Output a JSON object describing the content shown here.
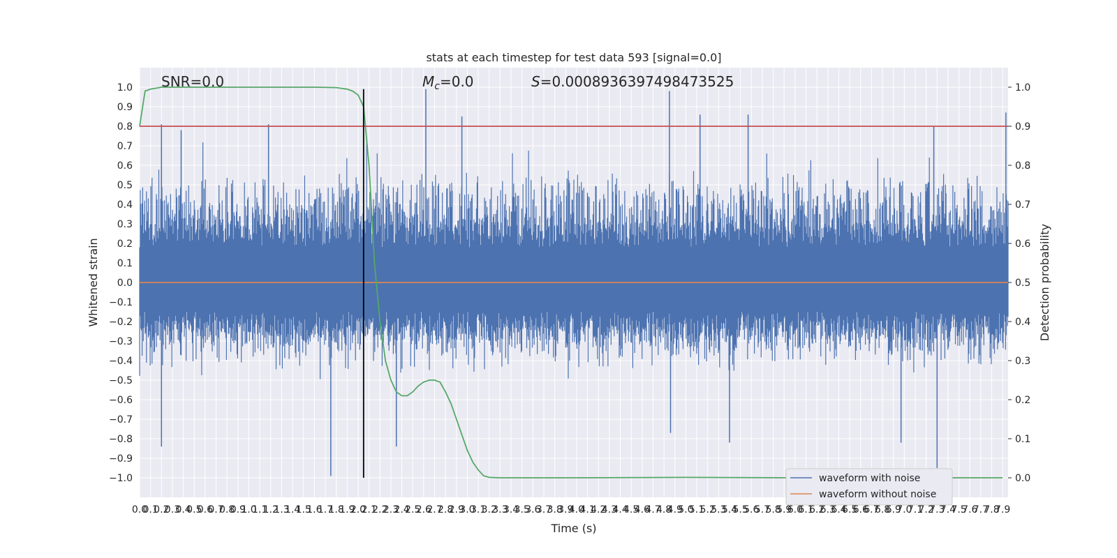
{
  "chart_data": {
    "type": "line",
    "title": "stats at each timestep for test data 593 [signal=0.0]",
    "xlabel": "Time (s)",
    "ylabel": "Whitened strain",
    "y2label": "Detection probability",
    "xlim": [
      0.0,
      7.95
    ],
    "ylim": [
      -1.1,
      1.1
    ],
    "y2lim": [
      -0.05,
      1.05
    ],
    "x_ticks": [
      "0.0",
      "0.1",
      "0.2",
      "0.3",
      "0.4",
      "0.5",
      "0.6",
      "0.7",
      "0.8",
      "0.9",
      "1.0",
      "1.1",
      "1.2",
      "1.3",
      "1.4",
      "1.5",
      "1.6",
      "1.7",
      "1.8",
      "1.9",
      "2.0",
      "2.1",
      "2.2",
      "2.3",
      "2.4",
      "2.5",
      "2.6",
      "2.7",
      "2.8",
      "2.9",
      "3.0",
      "3.1",
      "3.2",
      "3.3",
      "3.4",
      "3.5",
      "3.6",
      "3.7",
      "3.8",
      "3.9",
      "4.0",
      "4.1",
      "4.2",
      "4.3",
      "4.4",
      "4.5",
      "4.6",
      "4.7",
      "4.8",
      "4.9",
      "5.0",
      "5.1",
      "5.2",
      "5.3",
      "5.4",
      "5.5",
      "5.6",
      "5.7",
      "5.8",
      "5.9",
      "6.0",
      "6.1",
      "6.2",
      "6.3",
      "6.4",
      "6.5",
      "6.6",
      "6.7",
      "6.8",
      "6.9",
      "7.0",
      "7.1",
      "7.2",
      "7.3",
      "7.4",
      "7.5",
      "7.6",
      "7.7",
      "7.8",
      "7.9"
    ],
    "y_ticks": [
      "1.0",
      "0.9",
      "0.8",
      "0.7",
      "0.6",
      "0.5",
      "0.4",
      "0.3",
      "0.2",
      "0.1",
      "0.0",
      "−0.1",
      "−0.2",
      "−0.3",
      "−0.4",
      "−0.5",
      "−0.6",
      "−0.7",
      "−0.8",
      "−0.9",
      "−1.0"
    ],
    "y_tick_values": [
      1.0,
      0.9,
      0.8,
      0.7,
      0.6,
      0.5,
      0.4,
      0.3,
      0.2,
      0.1,
      0.0,
      -0.1,
      -0.2,
      -0.3,
      -0.4,
      -0.5,
      -0.6,
      -0.7,
      -0.8,
      -0.9,
      -1.0
    ],
    "y2_ticks": [
      "1.0",
      "0.9",
      "0.8",
      "0.7",
      "0.6",
      "0.5",
      "0.4",
      "0.3",
      "0.2",
      "0.1",
      "0.0"
    ],
    "y2_tick_values": [
      1.0,
      0.9,
      0.8,
      0.7,
      0.6,
      0.5,
      0.4,
      0.3,
      0.2,
      0.1,
      0.0
    ],
    "annotations": {
      "snr": "SNR=0.0",
      "mc_symbol": "M",
      "mc_sub": "c",
      "mc_value": "=0.0",
      "s_symbol": "S",
      "s_value": "=0.0008936397498473525"
    },
    "legend": {
      "placement": "lower-right",
      "entries": [
        "waveform with noise",
        "waveform without noise"
      ]
    },
    "series": [
      {
        "name": "waveform with noise",
        "axis": "left",
        "color": "#4c72b0",
        "style": "dense noise",
        "description_values": {
          "typical_positive_peak": 0.55,
          "typical_negative_trough": -0.45,
          "max": 0.99,
          "min": -0.99
        },
        "notable_peaks": [
          {
            "x": 0.2,
            "y": 0.81
          },
          {
            "x": 0.38,
            "y": 0.78
          },
          {
            "x": 1.18,
            "y": 0.81
          },
          {
            "x": 2.62,
            "y": 0.99
          },
          {
            "x": 2.95,
            "y": 0.85
          },
          {
            "x": 4.85,
            "y": 0.98
          },
          {
            "x": 5.13,
            "y": 0.86
          },
          {
            "x": 5.57,
            "y": 0.86
          },
          {
            "x": 7.27,
            "y": 0.8
          },
          {
            "x": 7.93,
            "y": 0.87
          },
          {
            "x": 0.2,
            "y": -0.84
          },
          {
            "x": 1.75,
            "y": -0.99
          },
          {
            "x": 2.35,
            "y": -0.84
          },
          {
            "x": 4.86,
            "y": -0.77
          },
          {
            "x": 5.4,
            "y": -0.82
          },
          {
            "x": 6.97,
            "y": -0.82
          },
          {
            "x": 7.3,
            "y": -0.95
          }
        ]
      },
      {
        "name": "waveform without noise",
        "axis": "left",
        "color": "#dd8452",
        "x": [
          0.0,
          7.95
        ],
        "y": [
          0.0,
          0.0
        ]
      },
      {
        "name": "detection probability",
        "axis": "right",
        "color": "#55a868",
        "x": [
          0.0,
          0.05,
          0.1,
          0.2,
          0.4,
          0.8,
          1.2,
          1.6,
          1.8,
          1.9,
          1.95,
          2.0,
          2.05,
          2.1,
          2.15,
          2.2,
          2.25,
          2.3,
          2.35,
          2.4,
          2.45,
          2.5,
          2.55,
          2.6,
          2.65,
          2.7,
          2.75,
          2.8,
          2.85,
          2.9,
          2.95,
          3.0,
          3.05,
          3.1,
          3.15,
          3.2,
          3.3,
          4.0,
          5.0,
          6.0,
          7.0,
          7.9
        ],
        "y": [
          0.9,
          0.99,
          0.995,
          1.0,
          1.0,
          1.0,
          1.0,
          1.0,
          0.999,
          0.995,
          0.99,
          0.98,
          0.95,
          0.8,
          0.55,
          0.4,
          0.3,
          0.25,
          0.22,
          0.21,
          0.21,
          0.22,
          0.235,
          0.245,
          0.25,
          0.25,
          0.245,
          0.22,
          0.19,
          0.15,
          0.11,
          0.07,
          0.04,
          0.02,
          0.005,
          0.001,
          0.0,
          0.0,
          0.001,
          0.0,
          0.0,
          0.0
        ]
      },
      {
        "name": "threshold",
        "axis": "right",
        "color": "#c44e52",
        "x": [
          0.0,
          7.95
        ],
        "y": [
          0.9,
          0.9
        ]
      },
      {
        "name": "marker",
        "axis": "left",
        "color": "#000000",
        "style": "vertical line",
        "x": [
          2.05,
          2.05
        ],
        "y": [
          -1.0,
          0.99
        ]
      }
    ],
    "grid": true,
    "colors": {
      "plot_background": "#eaeaf2",
      "grid": "#ffffff",
      "text": "#262626"
    }
  }
}
